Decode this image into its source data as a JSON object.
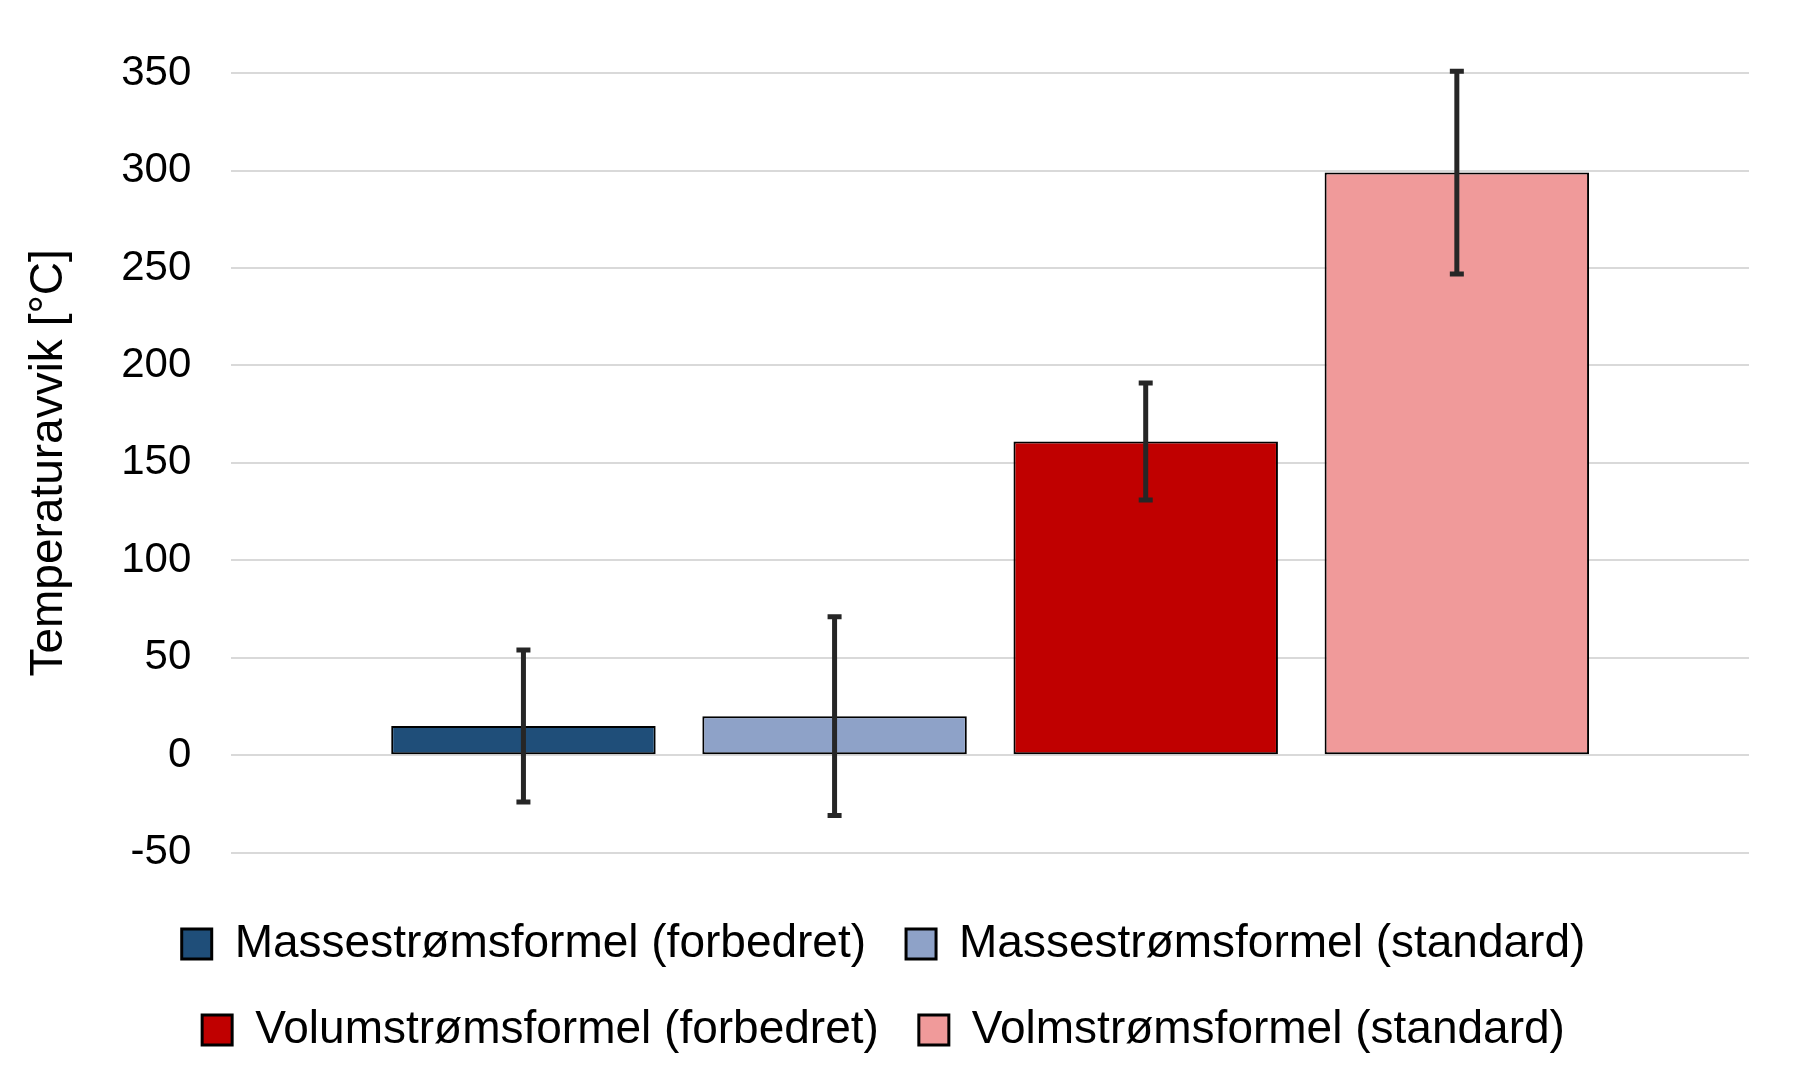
{
  "chart_data": {
    "type": "bar",
    "ylabel": "Temperaturavvik [°C]",
    "categories": [
      null
    ],
    "series": [
      {
        "name": "Massestrømsformel (forbedret)",
        "color": "#1f4e79",
        "values": [
          15
        ],
        "errors": [
          39
        ]
      },
      {
        "name": "Massestrømsformel (standard)",
        "color": "#8ea2c8",
        "values": [
          20
        ],
        "errors": [
          51
        ]
      },
      {
        "name": "Volumstrømsformel (forbedret)",
        "color": "#c00000",
        "values": [
          161
        ],
        "errors": [
          30
        ]
      },
      {
        "name": "Volmstrømsformel (standard)",
        "color": "#f09a9a",
        "values": [
          299
        ],
        "errors": [
          52
        ]
      }
    ],
    "ylim": [
      -50,
      350
    ],
    "yticks": [
      -50,
      0,
      50,
      100,
      150,
      200,
      250,
      300,
      350
    ],
    "grid": "y",
    "legend": "bottom"
  }
}
